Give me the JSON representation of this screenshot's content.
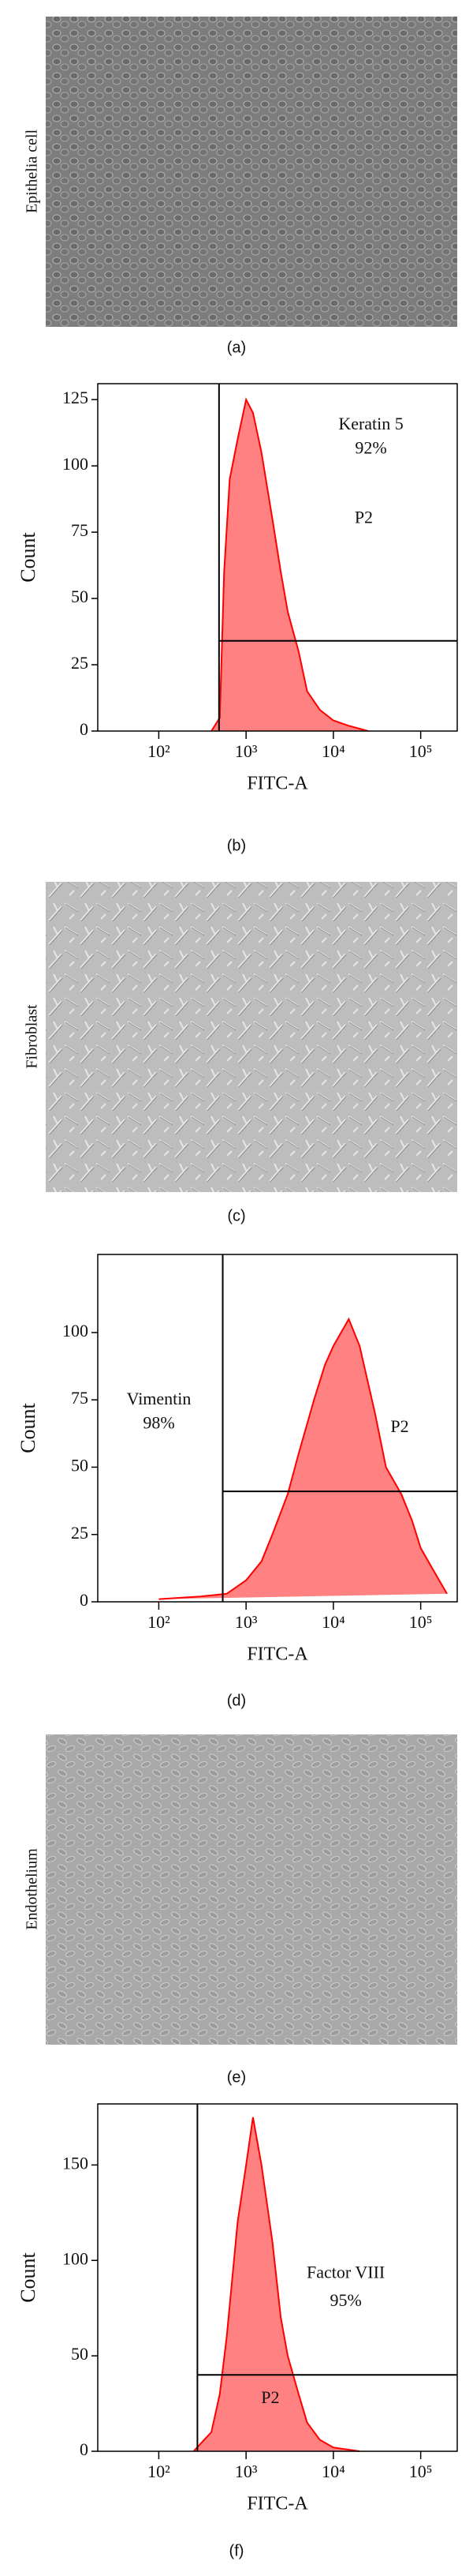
{
  "images": [
    {
      "label": "Epithelia cell",
      "caption": "(a)"
    },
    {
      "label": "Fibroblast",
      "caption": "(c)"
    },
    {
      "label": "Endothelium",
      "caption": "(e)"
    }
  ],
  "chart_data": [
    {
      "type": "area",
      "caption": "(b)",
      "x_label": "FITC-A",
      "y_label": "Count",
      "log_x": true,
      "annotations": [
        "Keratin 5",
        "92%",
        "P2"
      ],
      "xlim": [
        20,
        262144
      ],
      "ylim": [
        0,
        131
      ],
      "xticks": [
        {
          "value": 100,
          "label": "10²"
        },
        {
          "value": 1000,
          "label": "10³"
        },
        {
          "value": 10000,
          "label": "10⁴"
        },
        {
          "value": 100000,
          "label": "10⁵"
        }
      ],
      "yticks": [
        0,
        25,
        50,
        75,
        100,
        125
      ],
      "gate_x": 490,
      "gate_y": 34,
      "series": [
        {
          "color": "#ff6b6b",
          "x": [
            400,
            500,
            560,
            650,
            800,
            1000,
            1200,
            1500,
            2000,
            2500,
            3000,
            4000,
            5000,
            7000,
            10000,
            15000,
            25000
          ],
          "values": [
            0,
            5,
            60,
            95,
            110,
            125,
            120,
            105,
            80,
            60,
            45,
            30,
            15,
            8,
            4,
            2,
            0
          ]
        }
      ]
    },
    {
      "type": "area",
      "caption": "(d)",
      "x_label": "FITC-A",
      "y_label": "Count",
      "log_x": true,
      "annotations": [
        "Vimentin",
        "98%",
        "P2"
      ],
      "xlim": [
        20,
        262144
      ],
      "ylim": [
        0,
        129
      ],
      "xticks": [
        {
          "value": 100,
          "label": "10²"
        },
        {
          "value": 1000,
          "label": "10³"
        },
        {
          "value": 10000,
          "label": "10⁴"
        },
        {
          "value": 100000,
          "label": "10⁵"
        }
      ],
      "yticks": [
        0,
        25,
        50,
        75,
        100
      ],
      "gate_x": 540,
      "gate_y": 41,
      "series": [
        {
          "color": "#ff6b6b",
          "x": [
            100,
            300,
            600,
            1000,
            1500,
            2000,
            3000,
            4000,
            6000,
            8000,
            10000,
            15000,
            20000,
            30000,
            40000,
            60000,
            80000,
            100000,
            150000,
            200000
          ],
          "values": [
            1,
            2,
            3,
            8,
            15,
            25,
            40,
            55,
            75,
            88,
            95,
            105,
            95,
            70,
            50,
            40,
            30,
            20,
            10,
            3
          ]
        }
      ]
    },
    {
      "type": "area",
      "caption": "(f)",
      "x_label": "FITC-A",
      "y_label": "Count",
      "log_x": true,
      "annotations": [
        "Factor VIII",
        "95%",
        "P2"
      ],
      "xlim": [
        20,
        262144
      ],
      "ylim": [
        0,
        182
      ],
      "xticks": [
        {
          "value": 100,
          "label": "10²"
        },
        {
          "value": 1000,
          "label": "10³"
        },
        {
          "value": 10000,
          "label": "10⁴"
        },
        {
          "value": 100000,
          "label": "10⁵"
        }
      ],
      "yticks": [
        0,
        50,
        100,
        150
      ],
      "gate_x": 277,
      "gate_y": 40,
      "series": [
        {
          "color": "#ff6b6b",
          "x": [
            250,
            400,
            500,
            600,
            800,
            1000,
            1200,
            1500,
            2000,
            2500,
            3000,
            4000,
            5000,
            7000,
            10000,
            20000
          ],
          "values": [
            0,
            10,
            30,
            60,
            120,
            150,
            175,
            150,
            110,
            70,
            50,
            30,
            15,
            6,
            2,
            0
          ]
        }
      ]
    }
  ]
}
